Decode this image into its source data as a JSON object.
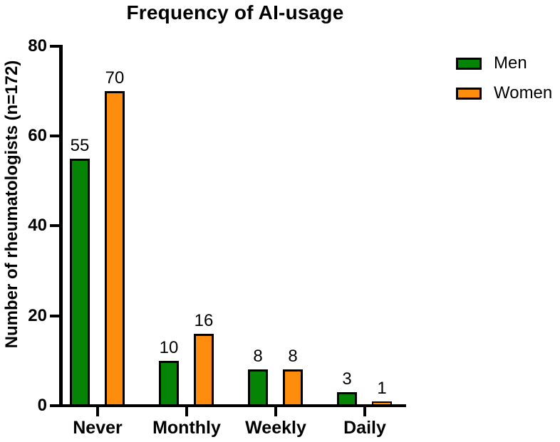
{
  "chart_data": {
    "type": "bar",
    "title": "Frequency of AI-usage",
    "xlabel": "",
    "ylabel": "Number of rheumatologists (n=172)",
    "categories": [
      "Never",
      "Monthly",
      "Weekly",
      "Daily"
    ],
    "series": [
      {
        "name": "Men",
        "color": "#058405",
        "values": [
          55,
          10,
          8,
          3
        ]
      },
      {
        "name": "Women",
        "color": "#FF8D0D",
        "values": [
          70,
          16,
          8,
          1
        ]
      }
    ],
    "ylim": [
      0,
      80
    ],
    "yticks": [
      0,
      20,
      40,
      60,
      80
    ],
    "grid": false,
    "legend_position": "right",
    "bar_value_labels": true,
    "axis_color": "#000000",
    "bar_border_color": "#000000",
    "background_color": "#FFFFFF"
  }
}
